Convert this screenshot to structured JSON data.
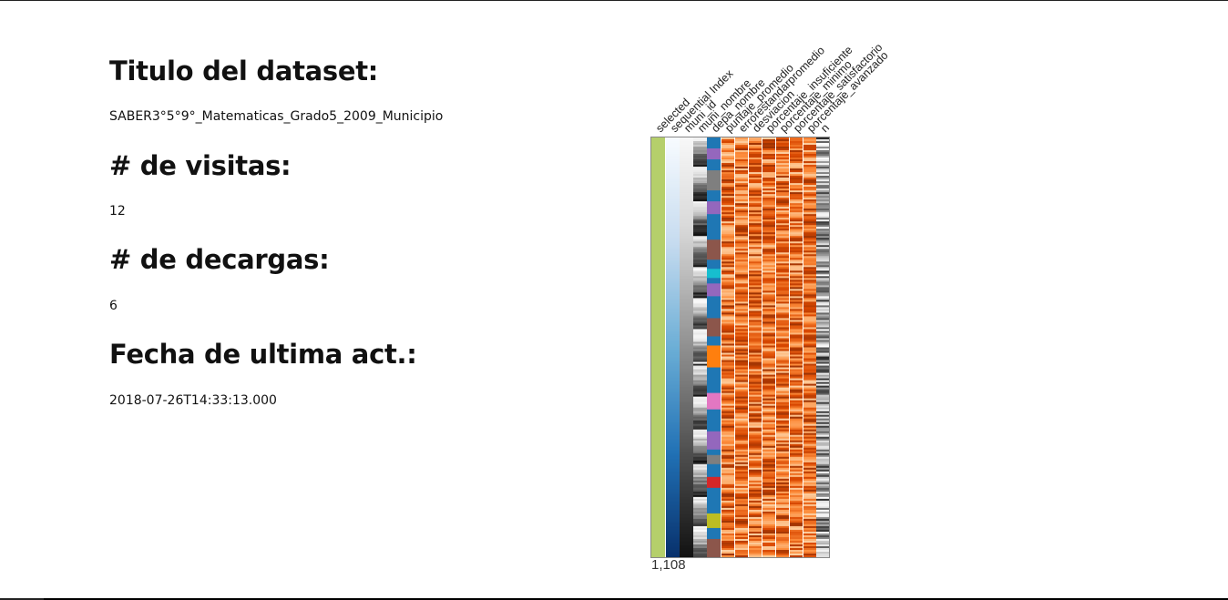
{
  "dataset": {
    "title_heading": "Titulo del dataset:",
    "title_value": "SABER3°5°9°_Matematicas_Grado5_2009_Municipio",
    "visits_heading": "# de visitas:",
    "visits_value": "12",
    "downloads_heading": "# de decargas:",
    "downloads_value": "6",
    "updated_heading": "Fecha de ultima act.:",
    "updated_value": "2018-07-26T14:33:13.000"
  },
  "chart_data": {
    "type": "heatmap",
    "row_count": 1108,
    "row_count_label": "1,108",
    "columns": [
      {
        "name": "selected",
        "kind": "constant",
        "color": "#b5cf6b"
      },
      {
        "name": "sequential Index",
        "kind": "sequential-blue"
      },
      {
        "name": "muni_id",
        "kind": "sequential-gray"
      },
      {
        "name": "muni_nombre",
        "kind": "categorical-gray"
      },
      {
        "name": "depa_nombre",
        "kind": "categorical"
      },
      {
        "name": "puntaje_promedio",
        "kind": "numeric-orange"
      },
      {
        "name": "errorestandarpromedio",
        "kind": "numeric-orange"
      },
      {
        "name": "desviacion",
        "kind": "numeric-orange"
      },
      {
        "name": "porcentaje_insuficiente",
        "kind": "numeric-orange"
      },
      {
        "name": "porcentaje_minimo",
        "kind": "numeric-orange"
      },
      {
        "name": "porcentaje_satisfactorio",
        "kind": "numeric-orange"
      },
      {
        "name": "porcentaje_avanzado",
        "kind": "numeric-orange"
      },
      {
        "name": "n",
        "kind": "numeric-gray"
      }
    ],
    "category_colors": [
      "#1f77b4",
      "#ff7f0e",
      "#d62728",
      "#9467bd",
      "#8c564b",
      "#e377c2",
      "#7f7f7f",
      "#bcbd22",
      "#17becf",
      "#2ca02c"
    ],
    "orange_scale": [
      "#fff5eb",
      "#fdd0a2",
      "#fd8d3c",
      "#d94801",
      "#8c2d04"
    ]
  }
}
